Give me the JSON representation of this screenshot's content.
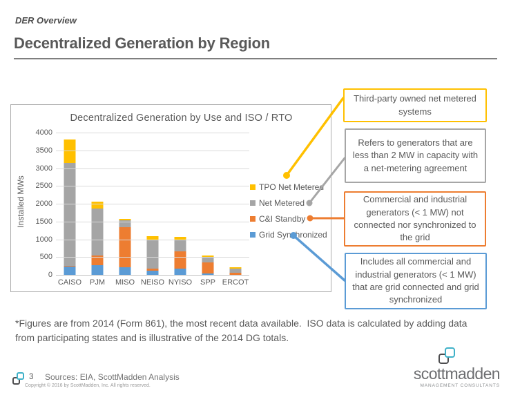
{
  "header": {
    "eyebrow": "DER Overview",
    "title": "Decentralized Generation by Region"
  },
  "chart_data": {
    "type": "bar",
    "stacked": true,
    "title": "Decentralized Generation by Use and ISO / RTO",
    "xlabel": "",
    "ylabel": "Installed MWs",
    "ylim": [
      0,
      4000
    ],
    "ytick_interval": 500,
    "grid": true,
    "legend_position": "right",
    "categories": [
      "CAISO",
      "PJM",
      "MISO",
      "NEISO",
      "NYISO",
      "SPP",
      "ERCOT"
    ],
    "series": [
      {
        "name": "Grid Synchronized",
        "color": "#5B9BD5",
        "values": [
          230,
          270,
          220,
          120,
          180,
          30,
          10
        ]
      },
      {
        "name": "C&I Standby",
        "color": "#ED7D31",
        "values": [
          30,
          280,
          1120,
          50,
          475,
          315,
          55
        ]
      },
      {
        "name": "Net Metered",
        "color": "#A5A5A5",
        "values": [
          2890,
          1320,
          190,
          810,
          320,
          140,
          120
        ]
      },
      {
        "name": "TPO Net Metered",
        "color": "#FFC000",
        "values": [
          650,
          180,
          45,
          115,
          85,
          55,
          20
        ]
      }
    ],
    "legend_order": [
      "TPO Net Metered",
      "Net Metered",
      "C&I Standby",
      "Grid Synchronized"
    ]
  },
  "callouts": [
    {
      "text": "Third-party owned net metered systems",
      "color": "#FFC000"
    },
    {
      "text": "Refers to generators that are less than 2 MW in capacity with a net-metering agreement",
      "color": "#A6A6A6"
    },
    {
      "text": "Commercial and industrial generators (< 1 MW) not connected nor synchronized to the grid",
      "color": "#ED7D31"
    },
    {
      "text": "Includes all commercial and industrial generators (< 1 MW) that are grid connected and grid synchronized",
      "color": "#5B9BD5"
    }
  ],
  "footnote": "*Figures are from 2014 (Form 861), the most recent data available.  ISO data is calculated by adding data from participating states and is illustrative of the 2014 DG totals.",
  "footer": {
    "page_number": "3",
    "sources": "Sources: EIA, ScottMadden Analysis",
    "copyright": "Copyright © 2016 by ScottMadden, Inc. All rights reserved.",
    "logo_text": "scottmadden",
    "logo_subtext": "MANAGEMENT CONSULTANTS",
    "brand_teal": "#3eb1c8",
    "brand_dark": "#4d4d4f"
  }
}
